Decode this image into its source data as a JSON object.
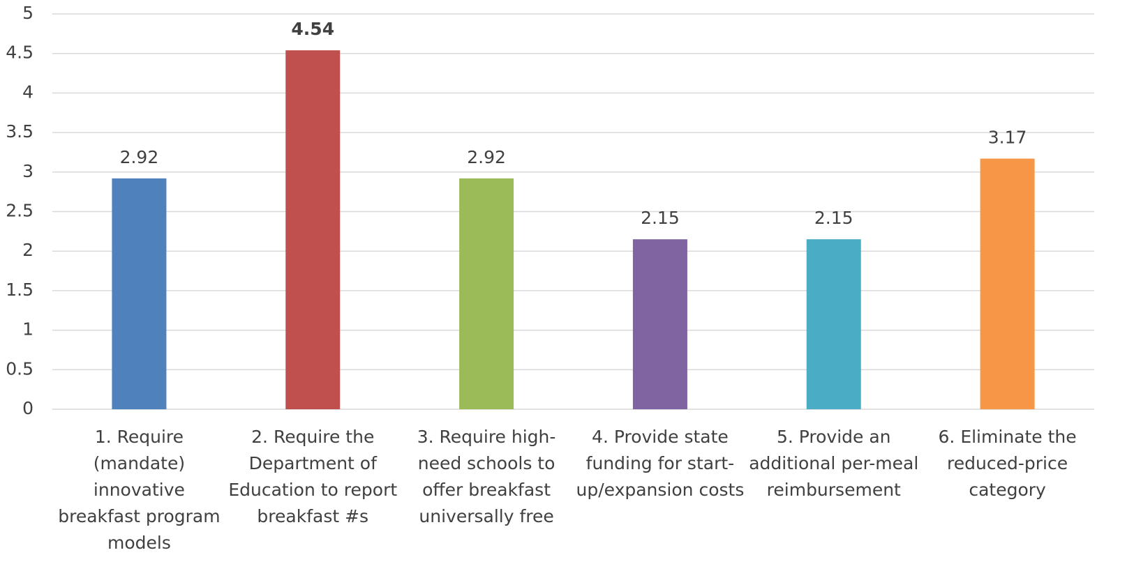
{
  "chart_data": {
    "type": "bar",
    "categories": [
      [
        "1. Require",
        "(mandate)",
        "innovative",
        "breakfast program",
        "models"
      ],
      [
        "2. Require the",
        "Department of",
        "Education to report",
        "breakfast #s"
      ],
      [
        "3. Require high-",
        "need schools to",
        "offer breakfast",
        "universally free"
      ],
      [
        "4. Provide state",
        "funding for start-",
        "up/expansion costs"
      ],
      [
        "5. Provide an",
        "additional per-meal",
        "reimbursement"
      ],
      [
        "6. Eliminate the",
        "reduced-price",
        "category"
      ]
    ],
    "values": [
      2.92,
      4.54,
      2.92,
      2.15,
      2.15,
      3.17
    ],
    "colors": [
      "#4f81bd",
      "#c0504d",
      "#9bbb59",
      "#8064a2",
      "#4bacc6",
      "#f79646"
    ],
    "ylim": [
      0,
      5
    ],
    "yticks": [
      0,
      0.5,
      1,
      1.5,
      2,
      2.5,
      3,
      3.5,
      4,
      4.5,
      5
    ],
    "grid": true
  }
}
